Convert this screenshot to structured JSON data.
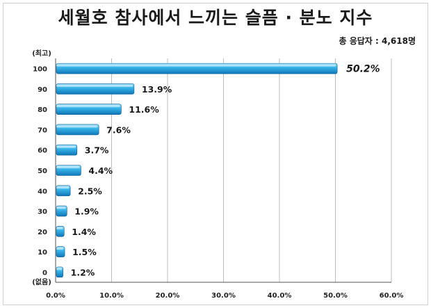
{
  "title": "세월호 참사에서 느끼는 슬픔 · 분노 지수",
  "respondents": "총 응답자 : 4,618명",
  "chart_data": {
    "type": "bar",
    "orientation": "horizontal",
    "categories": [
      "100",
      "90",
      "80",
      "70",
      "60",
      "50",
      "40",
      "30",
      "20",
      "10",
      "0"
    ],
    "values": [
      50.2,
      13.9,
      11.6,
      7.6,
      3.7,
      4.4,
      2.5,
      1.9,
      1.4,
      1.5,
      1.2
    ],
    "value_labels": [
      "50.2%",
      "13.9%",
      "11.6%",
      "7.6%",
      "3.7%",
      "4.4%",
      "2.5%",
      "1.9%",
      "1.4%",
      "1.5%",
      "1.2%"
    ],
    "top_annotation": "(최고)",
    "bottom_annotation": "(없음)",
    "xlim": [
      0,
      60
    ],
    "x_ticks": [
      "0.0%",
      "10.0%",
      "20.0%",
      "30.0%",
      "40.0%",
      "50.0%",
      "60.0%"
    ],
    "grid": true,
    "bar_color": "#29a9e0"
  }
}
